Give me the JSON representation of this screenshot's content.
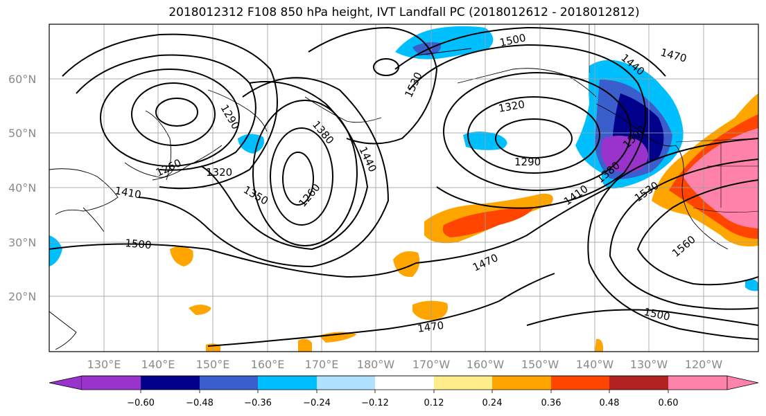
{
  "title": "2018012312 F108 850 hPa height, IVT Landfall PC (2018012612 - 2018012812)",
  "lat_labels": [
    "20°N",
    "30°N",
    "40°N",
    "50°N",
    "60°N"
  ],
  "lon_labels": [
    "130°E",
    "140°E",
    "150°E",
    "160°E",
    "170°E",
    "180°W",
    "170°W",
    "160°W",
    "150°W",
    "140°W",
    "130°W",
    "120°W"
  ],
  "contour_labels": [
    "1260",
    "1290",
    "1320",
    "1350",
    "1380",
    "1410",
    "1440",
    "1470",
    "1500",
    "1530",
    "1560",
    "1260",
    "1290",
    "1320",
    "1410",
    "1440",
    "1470",
    "1500",
    "1500",
    "1530",
    "1380",
    "1470",
    "1500"
  ],
  "colorbar": {
    "tick_labels": [
      "−0.60",
      "−0.48",
      "−0.36",
      "−0.24",
      "−0.12",
      "0.12",
      "0.24",
      "0.36",
      "0.48",
      "0.60"
    ],
    "colors": [
      "#9933cc",
      "#00008b",
      "#3a5fcd",
      "#00bfff",
      "#b0e2ff",
      "#ffffff",
      "#ffec8b",
      "#ffa500",
      "#ff4500",
      "#b22222",
      "#ff82ab"
    ]
  }
}
